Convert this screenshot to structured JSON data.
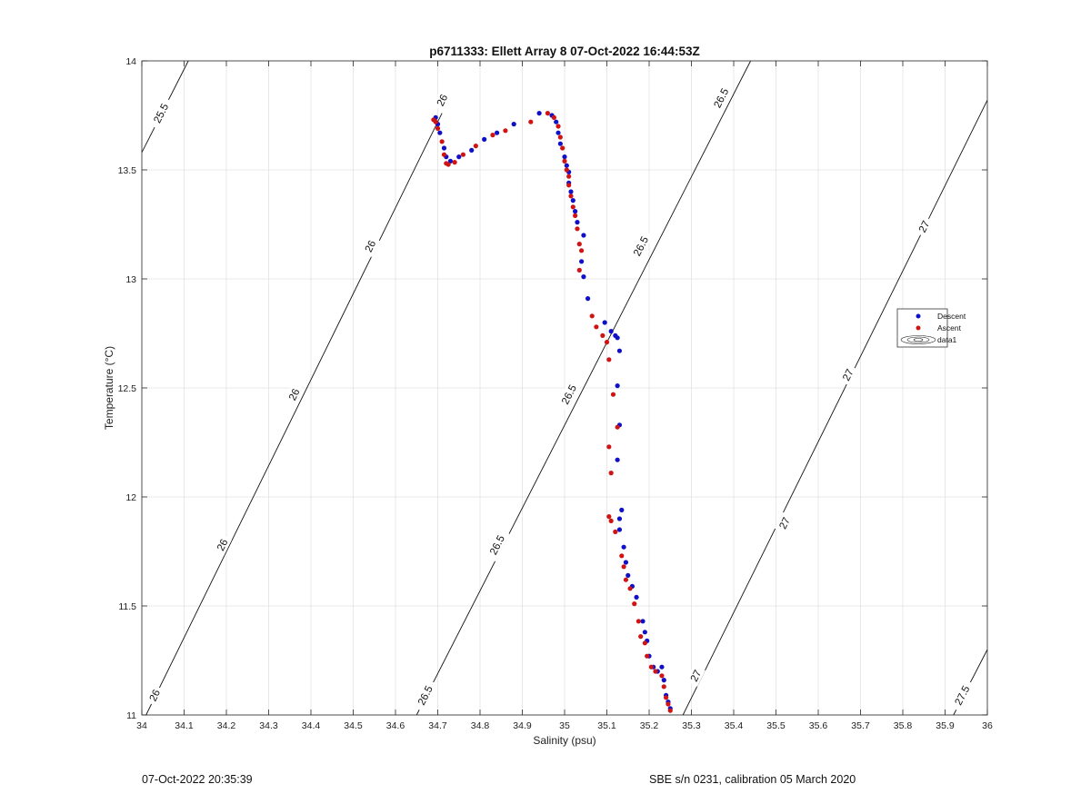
{
  "chart_data": {
    "type": "scatter",
    "title": "p6711333: Ellett Array 8 07-Oct-2022 16:44:53Z",
    "xlabel": "Salinity (psu)",
    "ylabel": "Temperature (°C)",
    "xlim": [
      34,
      36
    ],
    "ylim": [
      11,
      14
    ],
    "xticks": [
      "34",
      "34.1",
      "34.2",
      "34.3",
      "34.4",
      "34.5",
      "34.6",
      "34.7",
      "34.8",
      "34.9",
      "35",
      "35.1",
      "35.2",
      "35.3",
      "35.4",
      "35.5",
      "35.6",
      "35.7",
      "35.8",
      "35.9",
      "36"
    ],
    "yticks": [
      "11",
      "11.5",
      "12",
      "12.5",
      "13",
      "13.5",
      "14"
    ],
    "grid": true,
    "legend_position": "right",
    "legend": [
      "Descent",
      "Ascent",
      "data1"
    ],
    "series": [
      {
        "name": "Descent",
        "color": "#1010c8",
        "points": [
          [
            34.695,
            13.74
          ],
          [
            34.7,
            13.71
          ],
          [
            34.705,
            13.67
          ],
          [
            34.715,
            13.6
          ],
          [
            34.72,
            13.56
          ],
          [
            34.73,
            13.54
          ],
          [
            34.75,
            13.56
          ],
          [
            34.78,
            13.59
          ],
          [
            34.81,
            13.64
          ],
          [
            34.84,
            13.67
          ],
          [
            34.88,
            13.71
          ],
          [
            34.94,
            13.76
          ],
          [
            34.97,
            13.75
          ],
          [
            34.98,
            13.72
          ],
          [
            34.985,
            13.67
          ],
          [
            34.99,
            13.62
          ],
          [
            35.0,
            13.56
          ],
          [
            35.005,
            13.52
          ],
          [
            35.01,
            13.49
          ],
          [
            35.01,
            13.44
          ],
          [
            35.015,
            13.4
          ],
          [
            35.02,
            13.36
          ],
          [
            35.025,
            13.31
          ],
          [
            35.03,
            13.26
          ],
          [
            35.045,
            13.2
          ],
          [
            35.04,
            13.08
          ],
          [
            35.045,
            13.01
          ],
          [
            35.055,
            12.91
          ],
          [
            35.095,
            12.8
          ],
          [
            35.11,
            12.76
          ],
          [
            35.12,
            12.74
          ],
          [
            35.125,
            12.73
          ],
          [
            35.13,
            12.67
          ],
          [
            35.125,
            12.51
          ],
          [
            35.13,
            12.33
          ],
          [
            35.125,
            12.17
          ],
          [
            35.135,
            11.94
          ],
          [
            35.13,
            11.9
          ],
          [
            35.13,
            11.85
          ],
          [
            35.14,
            11.77
          ],
          [
            35.145,
            11.7
          ],
          [
            35.15,
            11.64
          ],
          [
            35.16,
            11.59
          ],
          [
            35.17,
            11.54
          ],
          [
            35.185,
            11.43
          ],
          [
            35.19,
            11.38
          ],
          [
            35.195,
            11.34
          ],
          [
            35.2,
            11.27
          ],
          [
            35.21,
            11.22
          ],
          [
            35.22,
            11.2
          ],
          [
            35.23,
            11.22
          ],
          [
            35.235,
            11.16
          ],
          [
            35.24,
            11.09
          ],
          [
            35.245,
            11.06
          ],
          [
            35.25,
            11.03
          ]
        ]
      },
      {
        "name": "Ascent",
        "color": "#d01414",
        "points": [
          [
            34.69,
            13.73
          ],
          [
            34.695,
            13.72
          ],
          [
            34.7,
            13.69
          ],
          [
            34.71,
            13.63
          ],
          [
            34.715,
            13.57
          ],
          [
            34.72,
            13.53
          ],
          [
            34.725,
            13.525
          ],
          [
            34.74,
            13.535
          ],
          [
            34.76,
            13.57
          ],
          [
            34.79,
            13.61
          ],
          [
            34.83,
            13.66
          ],
          [
            34.86,
            13.68
          ],
          [
            34.92,
            13.72
          ],
          [
            34.96,
            13.76
          ],
          [
            34.975,
            13.74
          ],
          [
            34.985,
            13.7
          ],
          [
            34.99,
            13.65
          ],
          [
            34.995,
            13.6
          ],
          [
            35.0,
            13.54
          ],
          [
            35.005,
            13.5
          ],
          [
            35.01,
            13.47
          ],
          [
            35.01,
            13.43
          ],
          [
            35.015,
            13.38
          ],
          [
            35.02,
            13.33
          ],
          [
            35.025,
            13.29
          ],
          [
            35.03,
            13.23
          ],
          [
            35.035,
            13.16
          ],
          [
            35.04,
            13.13
          ],
          [
            35.035,
            13.04
          ],
          [
            35.065,
            12.83
          ],
          [
            35.075,
            12.78
          ],
          [
            35.09,
            12.74
          ],
          [
            35.1,
            12.71
          ],
          [
            35.105,
            12.63
          ],
          [
            35.115,
            12.47
          ],
          [
            35.125,
            12.32
          ],
          [
            35.105,
            12.23
          ],
          [
            35.11,
            12.11
          ],
          [
            35.105,
            11.91
          ],
          [
            35.11,
            11.89
          ],
          [
            35.12,
            11.84
          ],
          [
            35.135,
            11.73
          ],
          [
            35.14,
            11.68
          ],
          [
            35.145,
            11.62
          ],
          [
            35.155,
            11.58
          ],
          [
            35.165,
            11.51
          ],
          [
            35.175,
            11.43
          ],
          [
            35.18,
            11.36
          ],
          [
            35.19,
            11.33
          ],
          [
            35.195,
            11.27
          ],
          [
            35.205,
            11.22
          ],
          [
            35.215,
            11.2
          ],
          [
            35.23,
            11.18
          ],
          [
            35.235,
            11.13
          ],
          [
            35.24,
            11.08
          ],
          [
            35.245,
            11.05
          ],
          [
            35.25,
            11.02
          ]
        ]
      }
    ],
    "isopycnals": [
      {
        "sigma": "25.5",
        "line": [
          [
            34.0,
            13.58
          ],
          [
            34.11,
            14.0
          ]
        ],
        "labels": [
          [
            34.045,
            13.76
          ]
        ]
      },
      {
        "sigma": "26",
        "line": [
          [
            34.01,
            11.0
          ],
          [
            34.71,
            13.76
          ]
        ],
        "labels": [
          [
            34.03,
            11.09
          ],
          [
            34.19,
            11.78
          ],
          [
            34.36,
            12.47
          ],
          [
            34.54,
            13.15
          ],
          [
            34.71,
            13.82
          ]
        ]
      },
      {
        "sigma": "26.5",
        "line": [
          [
            34.65,
            11.0
          ],
          [
            35.44,
            14.0
          ]
        ],
        "labels": [
          [
            34.67,
            11.09
          ],
          [
            34.84,
            11.78
          ],
          [
            35.01,
            12.47
          ],
          [
            35.18,
            13.15
          ],
          [
            35.37,
            13.83
          ]
        ]
      },
      {
        "sigma": "27",
        "line": [
          [
            35.28,
            11.0
          ],
          [
            36.0,
            13.82
          ]
        ],
        "labels": [
          [
            35.31,
            11.18
          ],
          [
            35.52,
            11.88
          ],
          [
            35.67,
            12.56
          ],
          [
            35.85,
            13.24
          ]
        ]
      },
      {
        "sigma": "27.5",
        "line": [
          [
            35.92,
            11.0
          ],
          [
            36.0,
            11.3
          ]
        ],
        "labels": [
          [
            35.94,
            11.09
          ]
        ]
      }
    ]
  },
  "footer": {
    "left": "07-Oct-2022 20:35:39",
    "right": "SBE s/n 0231, calibration 05 March 2020"
  }
}
